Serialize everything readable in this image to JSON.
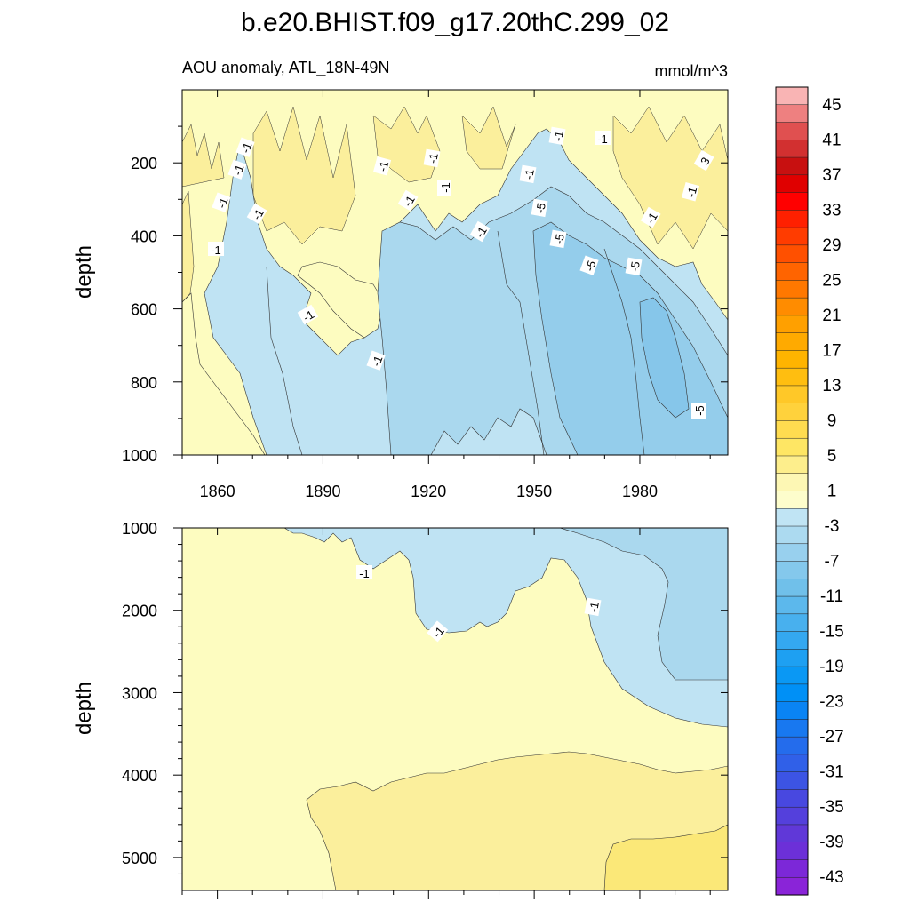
{
  "figure": {
    "title": "b.e20.BHIST.f09_g17.20thC.299_02",
    "subtitle_left": "AOU anomaly, ATL_18N-49N",
    "subtitle_right": "mmol/m^3"
  },
  "chart_data": [
    {
      "type": "heatmap",
      "panel": "upper",
      "ylabel": "depth",
      "y_reversed": true,
      "xlim": [
        1850,
        2005
      ],
      "ylim": [
        0,
        1000
      ],
      "x_ticks": [
        1860,
        1890,
        1920,
        1950,
        1980
      ],
      "y_ticks": [
        200,
        400,
        600,
        800,
        1000
      ],
      "contour_labels": [
        "-1",
        "-1",
        "-1",
        "-1",
        "-1",
        "-1",
        "-1",
        "-1",
        "-1",
        "-1",
        "-1",
        "-1",
        "-1",
        "-1",
        "-1",
        "-1",
        "-1",
        "-5",
        "-5",
        "-5",
        "-5",
        "-5",
        "-5",
        "3"
      ],
      "regions": [
        {
          "level": 1,
          "description_value": "0 to 2",
          "color": "#fdfcc0"
        },
        {
          "level": 3,
          "description_value": "2 to 4",
          "color": "#fbef9c"
        },
        {
          "level": -1,
          "description_value": "-2 to 0",
          "color": "#bfe3f3"
        },
        {
          "level": -3,
          "description_value": "-4 to -2",
          "color": "#aad8ee"
        },
        {
          "level": -5,
          "description_value": "-6 to -4",
          "color": "#94cdeb"
        }
      ]
    },
    {
      "type": "heatmap",
      "panel": "lower",
      "ylabel": "depth",
      "y_reversed": true,
      "xlim": [
        1850,
        2005
      ],
      "ylim": [
        1000,
        5400
      ],
      "y_ticks": [
        1000,
        2000,
        3000,
        4000,
        5000
      ],
      "contour_labels": [
        "-1",
        "-1",
        "-1"
      ],
      "regions": [
        {
          "level": 1,
          "description_value": "0 to 2",
          "color": "#fdfcc0"
        },
        {
          "level": 3,
          "description_value": "2 to 4",
          "color": "#fbef9c"
        },
        {
          "level": 5,
          "description_value": "4 to 6",
          "color": "#fbe878"
        },
        {
          "level": -1,
          "description_value": "-2 to 0",
          "color": "#bfe3f3"
        },
        {
          "level": -3,
          "description_value": "-4 to -2",
          "color": "#aad8ee"
        }
      ]
    }
  ],
  "colorbar": {
    "labels": [
      "45",
      "41",
      "37",
      "33",
      "29",
      "25",
      "21",
      "17",
      "13",
      "9",
      "5",
      "1",
      "-3",
      "-7",
      "-11",
      "-15",
      "-19",
      "-23",
      "-27",
      "-31",
      "-35",
      "-39",
      "-43"
    ],
    "colors": [
      "#f9b4b4",
      "#ee8080",
      "#e05050",
      "#d23030",
      "#c81010",
      "#e00000",
      "#ff0000",
      "#ff2000",
      "#ff3c00",
      "#ff5000",
      "#ff6400",
      "#ff7800",
      "#ff8c00",
      "#ffa000",
      "#ffaa00",
      "#ffb400",
      "#ffbe10",
      "#ffc828",
      "#ffd23c",
      "#ffdc50",
      "#fee664",
      "#fdee8c",
      "#fdf7b4",
      "#fdfdcc",
      "#c0e4f4",
      "#acdaf0",
      "#98d0ee",
      "#84c8ec",
      "#70c0ea",
      "#5cb8ec",
      "#48b0ee",
      "#34a8f0",
      "#1ea0f2",
      "#0a98f4",
      "#0090f6",
      "#0a84f4",
      "#1878f0",
      "#246cec",
      "#3060e8",
      "#3c54e4",
      "#4848e0",
      "#5440dc",
      "#6038d8",
      "#6c30d8",
      "#7c28d8",
      "#8a24d8"
    ]
  }
}
